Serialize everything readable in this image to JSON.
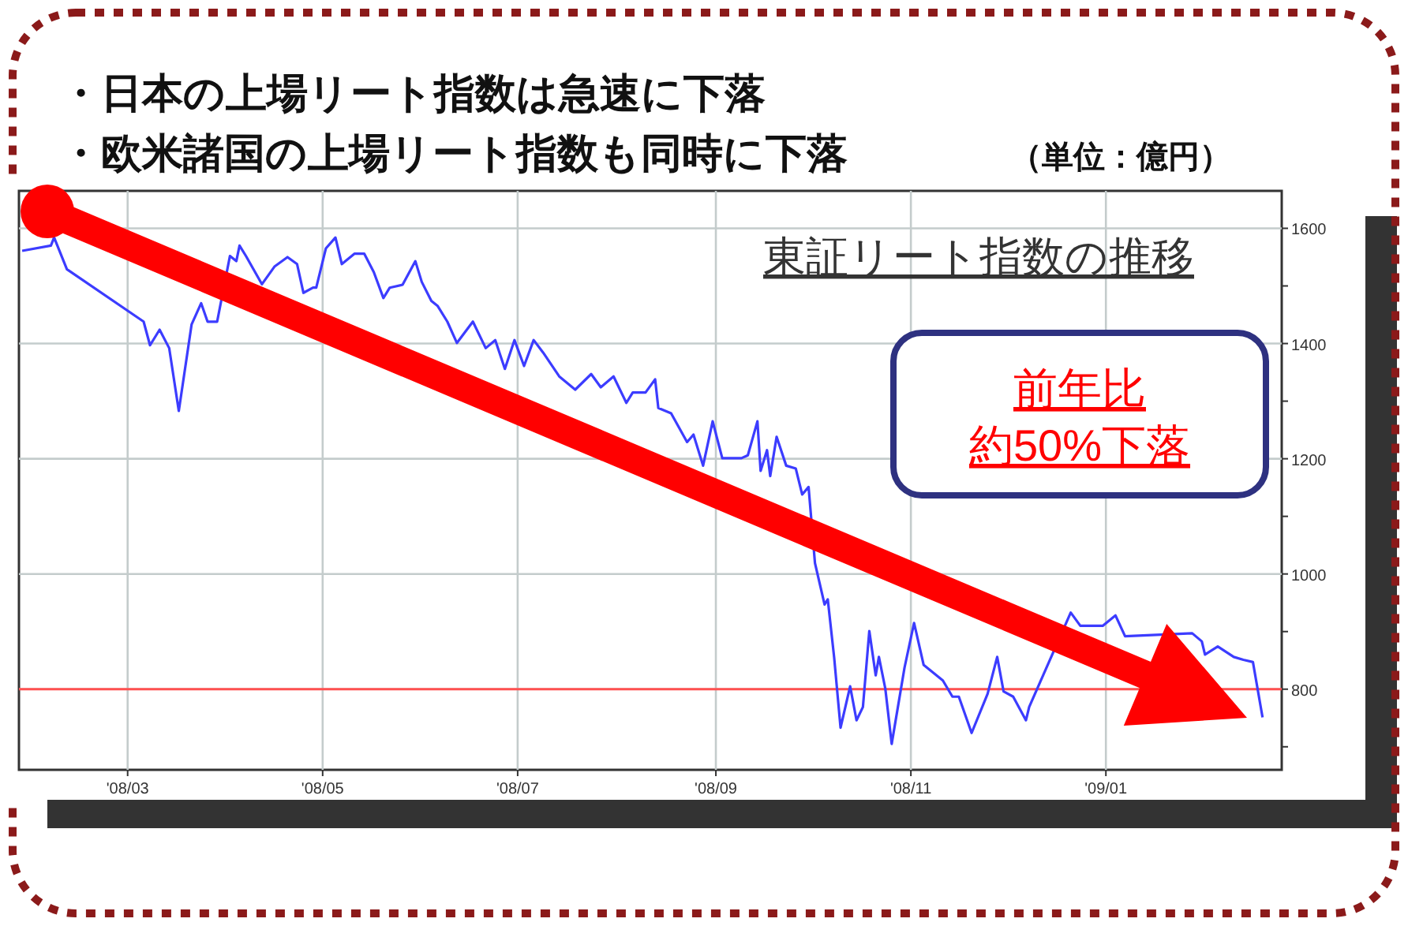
{
  "chart_data": {
    "type": "line",
    "title": "東証リート指数の推移",
    "annotations": [
      "・日本の上場リート指数は急速に下落",
      "・欧米諸国の上場リート指数も同時に下落",
      "（単位：億円）",
      "前年比",
      "約50%下落"
    ],
    "series": [
      {
        "color": "#3c3cff",
        "x": [
          "2008-01-28",
          "2008-02-06",
          "2008-02-07",
          "2008-02-11",
          "2008-03-06",
          "2008-03-08",
          "2008-03-11",
          "2008-03-14",
          "2008-03-17",
          "2008-03-21",
          "2008-03-24",
          "2008-03-26",
          "2008-03-29",
          "2008-04-02",
          "2008-04-04",
          "2008-04-05",
          "2008-04-07",
          "2008-04-12",
          "2008-04-16",
          "2008-04-20",
          "2008-04-23",
          "2008-04-25",
          "2008-04-28",
          "2008-04-29",
          "2008-05-02",
          "2008-05-05",
          "2008-05-07",
          "2008-05-11",
          "2008-05-14",
          "2008-05-17",
          "2008-05-20",
          "2008-05-22",
          "2008-05-26",
          "2008-05-30",
          "2008-06-01",
          "2008-06-04",
          "2008-06-06",
          "2008-06-09",
          "2008-06-12",
          "2008-06-17",
          "2008-06-21",
          "2008-06-24",
          "2008-06-27",
          "2008-06-30",
          "2008-07-03",
          "2008-07-06",
          "2008-07-09",
          "2008-07-14",
          "2008-07-19",
          "2008-07-24",
          "2008-07-27",
          "2008-07-31",
          "2008-08-04",
          "2008-08-06",
          "2008-08-10",
          "2008-08-13",
          "2008-08-14",
          "2008-08-18",
          "2008-08-23",
          "2008-08-25",
          "2008-08-28",
          "2008-08-31",
          "2008-09-03",
          "2008-09-09",
          "2008-09-11",
          "2008-09-14",
          "2008-09-15",
          "2008-09-17",
          "2008-09-18",
          "2008-09-20",
          "2008-09-23",
          "2008-09-26",
          "2008-09-28",
          "2008-09-30",
          "2008-10-02",
          "2008-10-05",
          "2008-10-06",
          "2008-10-08",
          "2008-10-10",
          "2008-10-13",
          "2008-10-15",
          "2008-10-17",
          "2008-10-19",
          "2008-10-21",
          "2008-10-22",
          "2008-10-24",
          "2008-10-26",
          "2008-10-30",
          "2008-11-02",
          "2008-11-05",
          "2008-11-11",
          "2008-11-14",
          "2008-11-16",
          "2008-11-20",
          "2008-11-25",
          "2008-11-28",
          "2008-11-30",
          "2008-12-03",
          "2008-12-07",
          "2008-12-08",
          "2008-12-21",
          "2008-12-24",
          "2008-12-31",
          "2009-01-04",
          "2009-01-07",
          "2009-01-28",
          "2009-01-31",
          "2009-02-01",
          "2009-02-05",
          "2009-02-10",
          "2009-02-13",
          "2009-02-16",
          "2009-02-19"
        ],
        "values": [
          1561,
          1570,
          1584,
          1529,
          1438,
          1397,
          1424,
          1392,
          1283,
          1433,
          1470,
          1438,
          1438,
          1552,
          1543,
          1570,
          1552,
          1503,
          1534,
          1550,
          1538,
          1488,
          1497,
          1497,
          1565,
          1584,
          1538,
          1556,
          1556,
          1524,
          1479,
          1497,
          1502,
          1543,
          1507,
          1474,
          1465,
          1438,
          1401,
          1438,
          1392,
          1406,
          1356,
          1406,
          1361,
          1406,
          1384,
          1343,
          1320,
          1347,
          1324,
          1343,
          1297,
          1315,
          1315,
          1338,
          1288,
          1279,
          1229,
          1242,
          1188,
          1265,
          1201,
          1201,
          1206,
          1265,
          1179,
          1215,
          1170,
          1238,
          1188,
          1183,
          1138,
          1151,
          1019,
          947,
          956,
          855,
          733,
          805,
          746,
          769,
          901,
          824,
          856,
          801,
          705,
          837,
          915,
          842,
          815,
          787,
          787,
          724,
          792,
          856,
          796,
          787,
          746,
          769,
          933,
          910,
          910,
          928,
          892,
          897,
          883,
          860,
          874,
          856,
          851,
          847,
          751
        ]
      }
    ],
    "xlim": [
      "2008-01-27",
      "2009-02-25"
    ],
    "xticks": [
      {
        "value": "2008-03-01",
        "label": "'08/03"
      },
      {
        "value": "2008-05-01",
        "label": "'08/05"
      },
      {
        "value": "2008-07-01",
        "label": "'08/07"
      },
      {
        "value": "2008-09-01",
        "label": "'08/09"
      },
      {
        "value": "2008-11-01",
        "label": "'08/11"
      },
      {
        "value": "2009-01-01",
        "label": "'09/01"
      }
    ],
    "ylim": [
      660,
      1665
    ],
    "yticks": [
      {
        "value": 700,
        "label": null
      },
      800,
      {
        "value": 900,
        "label": null
      },
      1000,
      {
        "value": 1100,
        "label": null
      },
      1200,
      {
        "value": 1300,
        "label": null
      },
      1400,
      {
        "value": 1500,
        "label": null
      },
      1600
    ],
    "ref_lines": [
      {
        "axis": "y",
        "value": 800,
        "color": "#ff5050"
      }
    ],
    "grid": true,
    "marker": "none",
    "line_style": "solid"
  }
}
